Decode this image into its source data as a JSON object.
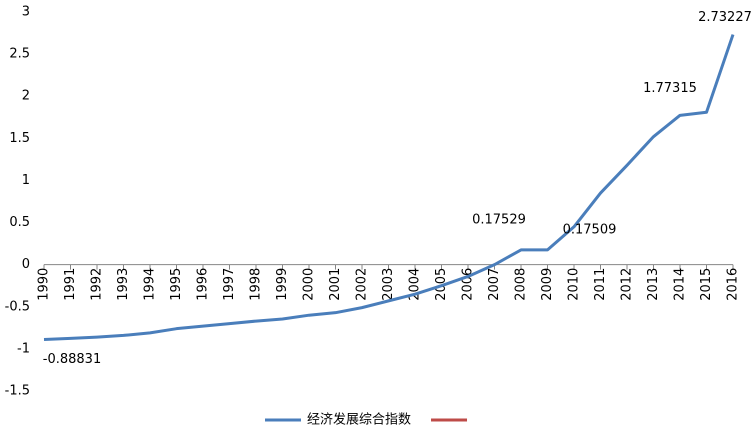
{
  "chart_data": {
    "type": "line",
    "categories": [
      "1990",
      "1991",
      "1992",
      "1993",
      "1994",
      "1995",
      "1996",
      "1997",
      "1998",
      "1999",
      "2000",
      "2001",
      "2002",
      "2003",
      "2004",
      "2005",
      "2006",
      "2007",
      "2008",
      "2009",
      "2010",
      "2011",
      "2012",
      "2013",
      "2014",
      "2015",
      "2016"
    ],
    "series": [
      {
        "name": "经济发展综合指数",
        "color": "#4a7ebb",
        "values": [
          -0.88831,
          -0.875,
          -0.86,
          -0.84,
          -0.81,
          -0.76,
          -0.73,
          -0.7,
          -0.67,
          -0.645,
          -0.6,
          -0.57,
          -0.51,
          -0.43,
          -0.35,
          -0.25,
          -0.14,
          0.0,
          0.17529,
          0.17509,
          0.45,
          0.85,
          1.18,
          1.52,
          1.77315,
          1.81,
          2.73227
        ],
        "value_labels": [
          "-0.88831",
          null,
          null,
          null,
          null,
          null,
          null,
          null,
          null,
          null,
          null,
          null,
          null,
          null,
          null,
          null,
          null,
          null,
          "0.17529",
          "0.17509",
          null,
          null,
          null,
          null,
          "1.77315",
          null,
          "2.73227"
        ]
      },
      {
        "color": "#be4b48",
        "values": [
          null,
          null,
          null,
          null,
          null,
          null,
          null,
          null,
          null,
          null,
          null,
          null,
          null,
          null,
          null,
          null,
          null,
          null,
          null,
          null,
          null,
          null,
          null,
          null,
          null,
          null,
          null
        ]
      }
    ],
    "ylim": [
      -1.5,
      3
    ],
    "yticks": [
      -1.5,
      -1,
      -0.5,
      0,
      0.5,
      1,
      1.5,
      2,
      2.5,
      3
    ],
    "grid": false
  }
}
